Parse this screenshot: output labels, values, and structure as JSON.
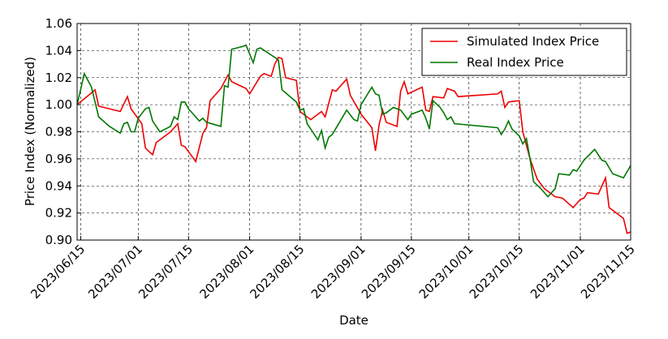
{
  "chart_data": {
    "type": "line",
    "xlabel": "Date",
    "ylabel": "Price Index (Normalized)",
    "xlim": [
      "2023-06-14",
      "2023-11-15"
    ],
    "ylim": [
      0.9,
      1.06
    ],
    "xticks": [
      {
        "value": "2023-06-15",
        "label": "2023/06/15"
      },
      {
        "value": "2023-07-01",
        "label": "2023/07/01"
      },
      {
        "value": "2023-07-15",
        "label": "2023/07/15"
      },
      {
        "value": "2023-08-01",
        "label": "2023/08/01"
      },
      {
        "value": "2023-08-15",
        "label": "2023/08/15"
      },
      {
        "value": "2023-09-01",
        "label": "2023/09/01"
      },
      {
        "value": "2023-09-15",
        "label": "2023/09/15"
      },
      {
        "value": "2023-10-01",
        "label": "2023/10/01"
      },
      {
        "value": "2023-10-15",
        "label": "2023/10/15"
      },
      {
        "value": "2023-11-01",
        "label": "2023/11/01"
      },
      {
        "value": "2023-11-15",
        "label": "2023/11/15"
      }
    ],
    "yticks": [
      {
        "value": 0.9,
        "label": "0.90"
      },
      {
        "value": 0.92,
        "label": "0.92"
      },
      {
        "value": 0.94,
        "label": "0.94"
      },
      {
        "value": 0.96,
        "label": "0.96"
      },
      {
        "value": 0.98,
        "label": "0.98"
      },
      {
        "value": 1.0,
        "label": "1.00"
      },
      {
        "value": 1.02,
        "label": "1.02"
      },
      {
        "value": 1.04,
        "label": "1.04"
      },
      {
        "value": 1.06,
        "label": "1.06"
      }
    ],
    "grid": true,
    "legend": "upper right",
    "series": [
      {
        "name": "Simulated Index Price",
        "color": "#ee0000",
        "x": [
          "2023-06-14",
          "2023-06-19",
          "2023-06-20",
          "2023-06-26",
          "2023-06-28",
          "2023-06-29",
          "2023-07-02",
          "2023-07-03",
          "2023-07-05",
          "2023-07-06",
          "2023-07-10",
          "2023-07-12",
          "2023-07-13",
          "2023-07-14",
          "2023-07-17",
          "2023-07-19",
          "2023-07-20",
          "2023-07-21",
          "2023-07-24",
          "2023-07-26",
          "2023-07-27",
          "2023-07-31",
          "2023-08-01",
          "2023-08-04",
          "2023-08-05",
          "2023-08-07",
          "2023-08-08",
          "2023-08-09",
          "2023-08-10",
          "2023-08-11",
          "2023-08-14",
          "2023-08-15",
          "2023-08-18",
          "2023-08-21",
          "2023-08-22",
          "2023-08-24",
          "2023-08-25",
          "2023-08-28",
          "2023-08-29",
          "2023-09-01",
          "2023-09-04",
          "2023-09-05",
          "2023-09-06",
          "2023-09-07",
          "2023-09-08",
          "2023-09-11",
          "2023-09-12",
          "2023-09-13",
          "2023-09-14",
          "2023-09-18",
          "2023-09-19",
          "2023-09-20",
          "2023-09-21",
          "2023-09-24",
          "2023-09-25",
          "2023-09-27",
          "2023-09-28",
          "2023-10-09",
          "2023-10-10",
          "2023-10-11",
          "2023-10-12",
          "2023-10-15",
          "2023-10-16",
          "2023-10-18",
          "2023-10-20",
          "2023-10-22",
          "2023-10-23",
          "2023-10-25",
          "2023-10-27",
          "2023-10-30",
          "2023-11-01",
          "2023-11-02",
          "2023-11-03",
          "2023-11-06",
          "2023-11-08",
          "2023-11-09",
          "2023-11-13",
          "2023-11-14",
          "2023-11-15"
        ],
        "values": [
          1.0,
          1.011,
          0.999,
          0.995,
          1.006,
          0.997,
          0.986,
          0.968,
          0.963,
          0.972,
          0.98,
          0.986,
          0.97,
          0.969,
          0.958,
          0.979,
          0.983,
          1.003,
          1.012,
          1.022,
          1.017,
          1.012,
          1.008,
          1.021,
          1.023,
          1.021,
          1.03,
          1.035,
          1.034,
          1.02,
          1.018,
          0.995,
          0.989,
          0.995,
          0.991,
          1.011,
          1.01,
          1.019,
          1.007,
          0.993,
          0.983,
          0.966,
          0.985,
          0.996,
          0.987,
          0.984,
          1.01,
          1.017,
          1.008,
          1.013,
          0.996,
          0.995,
          1.006,
          1.005,
          1.012,
          1.01,
          1.006,
          1.008,
          1.01,
          0.998,
          1.002,
          1.003,
          0.98,
          0.96,
          0.945,
          0.938,
          0.936,
          0.932,
          0.931,
          0.924,
          0.93,
          0.931,
          0.935,
          0.934,
          0.946,
          0.924,
          0.916,
          0.905,
          0.906
        ]
      },
      {
        "name": "Real Index Price",
        "color": "#007700",
        "x": [
          "2023-06-14",
          "2023-06-16",
          "2023-06-18",
          "2023-06-20",
          "2023-06-23",
          "2023-06-26",
          "2023-06-27",
          "2023-06-28",
          "2023-06-29",
          "2023-06-30",
          "2023-07-01",
          "2023-07-03",
          "2023-07-04",
          "2023-07-05",
          "2023-07-07",
          "2023-07-10",
          "2023-07-11",
          "2023-07-12",
          "2023-07-13",
          "2023-07-14",
          "2023-07-15",
          "2023-07-18",
          "2023-07-19",
          "2023-07-20",
          "2023-07-24",
          "2023-07-25",
          "2023-07-26",
          "2023-07-27",
          "2023-07-30",
          "2023-07-31",
          "2023-08-02",
          "2023-08-03",
          "2023-08-04",
          "2023-08-08",
          "2023-08-09",
          "2023-08-10",
          "2023-08-14",
          "2023-08-15",
          "2023-08-16",
          "2023-08-17",
          "2023-08-20",
          "2023-08-21",
          "2023-08-22",
          "2023-08-23",
          "2023-08-24",
          "2023-08-28",
          "2023-08-30",
          "2023-08-31",
          "2023-09-01",
          "2023-09-04",
          "2023-09-05",
          "2023-09-06",
          "2023-09-07",
          "2023-09-08",
          "2023-09-10",
          "2023-09-12",
          "2023-09-14",
          "2023-09-15",
          "2023-09-17",
          "2023-09-18",
          "2023-09-19",
          "2023-09-20",
          "2023-09-21",
          "2023-09-23",
          "2023-09-24",
          "2023-09-25",
          "2023-09-26",
          "2023-09-27",
          "2023-10-09",
          "2023-10-10",
          "2023-10-11",
          "2023-10-12",
          "2023-10-13",
          "2023-10-15",
          "2023-10-16",
          "2023-10-17",
          "2023-10-18",
          "2023-10-19",
          "2023-10-21",
          "2023-10-23",
          "2023-10-25",
          "2023-10-26",
          "2023-10-29",
          "2023-10-30",
          "2023-10-31",
          "2023-11-02",
          "2023-11-05",
          "2023-11-07",
          "2023-11-08",
          "2023-11-10",
          "2023-11-13",
          "2023-11-15"
        ],
        "values": [
          1.0,
          1.023,
          1.013,
          0.991,
          0.984,
          0.979,
          0.986,
          0.987,
          0.98,
          0.98,
          0.99,
          0.997,
          0.998,
          0.988,
          0.98,
          0.984,
          0.991,
          0.989,
          1.002,
          1.002,
          0.997,
          0.988,
          0.99,
          0.987,
          0.984,
          1.014,
          1.013,
          1.041,
          1.043,
          1.044,
          1.031,
          1.041,
          1.042,
          1.035,
          1.033,
          1.011,
          1.002,
          0.996,
          0.997,
          0.986,
          0.974,
          0.981,
          0.968,
          0.976,
          0.978,
          0.996,
          0.989,
          0.988,
          1.0,
          1.013,
          1.008,
          1.007,
          0.993,
          0.994,
          0.998,
          0.996,
          0.989,
          0.993,
          0.995,
          0.996,
          0.99,
          0.982,
          1.003,
          0.998,
          0.994,
          0.989,
          0.991,
          0.986,
          0.983,
          0.978,
          0.982,
          0.988,
          0.982,
          0.977,
          0.971,
          0.975,
          0.96,
          0.943,
          0.938,
          0.932,
          0.938,
          0.949,
          0.948,
          0.952,
          0.951,
          0.959,
          0.967,
          0.959,
          0.958,
          0.949,
          0.946,
          0.955
        ]
      }
    ]
  }
}
